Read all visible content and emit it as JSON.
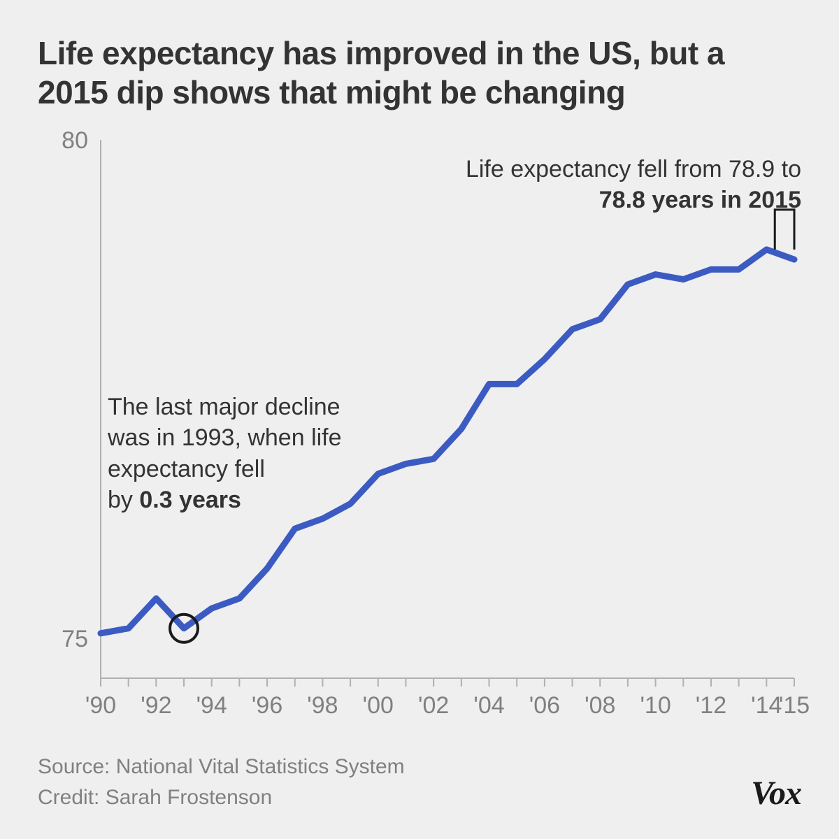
{
  "title": "Life expectancy has improved in the US, but a 2015 dip shows that might be changing",
  "chart": {
    "type": "line",
    "background_color": "#efefef",
    "line_color": "#3c5bc2",
    "line_width": 9,
    "axis_color": "#b0b0b0",
    "tick_color": "#b0b0b0",
    "axis_label_color": "#808080",
    "axis_label_fontsize": 34,
    "years": [
      1990,
      1991,
      1992,
      1993,
      1994,
      1995,
      1996,
      1997,
      1998,
      1999,
      2000,
      2001,
      2002,
      2003,
      2004,
      2005,
      2006,
      2007,
      2008,
      2009,
      2010,
      2011,
      2012,
      2013,
      2014,
      2015
    ],
    "values": [
      75.05,
      75.1,
      75.4,
      75.1,
      75.3,
      75.4,
      75.7,
      76.1,
      76.2,
      76.35,
      76.65,
      76.75,
      76.8,
      77.1,
      77.55,
      77.55,
      77.8,
      78.1,
      78.2,
      78.55,
      78.65,
      78.6,
      78.7,
      78.7,
      78.9,
      78.8
    ],
    "ylim": [
      74.6,
      80
    ],
    "y_ticks": [
      75,
      80
    ],
    "y_tick_labels": [
      "75",
      "80"
    ],
    "x_ticks": [
      1990,
      1992,
      1994,
      1996,
      1998,
      2000,
      2002,
      2004,
      2006,
      2008,
      2010,
      2012,
      2014,
      2015
    ],
    "x_tick_labels": [
      "'90",
      "'92",
      "'94",
      "'96",
      "'98",
      "'00",
      "'02",
      "'04",
      "'06",
      "'08",
      "'10",
      "'12",
      "'14",
      "'15"
    ],
    "circle_marker": {
      "year": 1993,
      "value": 75.1,
      "radius": 20,
      "stroke": "#1a1a1a",
      "stroke_width": 4
    },
    "bracket_2015": {
      "x_year": 2014.3,
      "y_from": 78.9,
      "y_to": 79.3,
      "stroke": "#1a1a1a",
      "stroke_width": 3
    }
  },
  "annotations": {
    "a1993_line1": "The last major decline",
    "a1993_line2": "was in 1993, when life",
    "a1993_line3": "expectancy fell",
    "a1993_line4_prefix": "by ",
    "a1993_line4_bold": "0.3 years",
    "a2015_line1": "Life expectancy fell from 78.9 to",
    "a2015_line2_bold": "78.8 years in 2015"
  },
  "footer": {
    "source_label": "Source: ",
    "source_value": "National Vital Statistics System",
    "credit_label": "Credit: ",
    "credit_value": "Sarah Frostenson",
    "logo": "Vox"
  }
}
